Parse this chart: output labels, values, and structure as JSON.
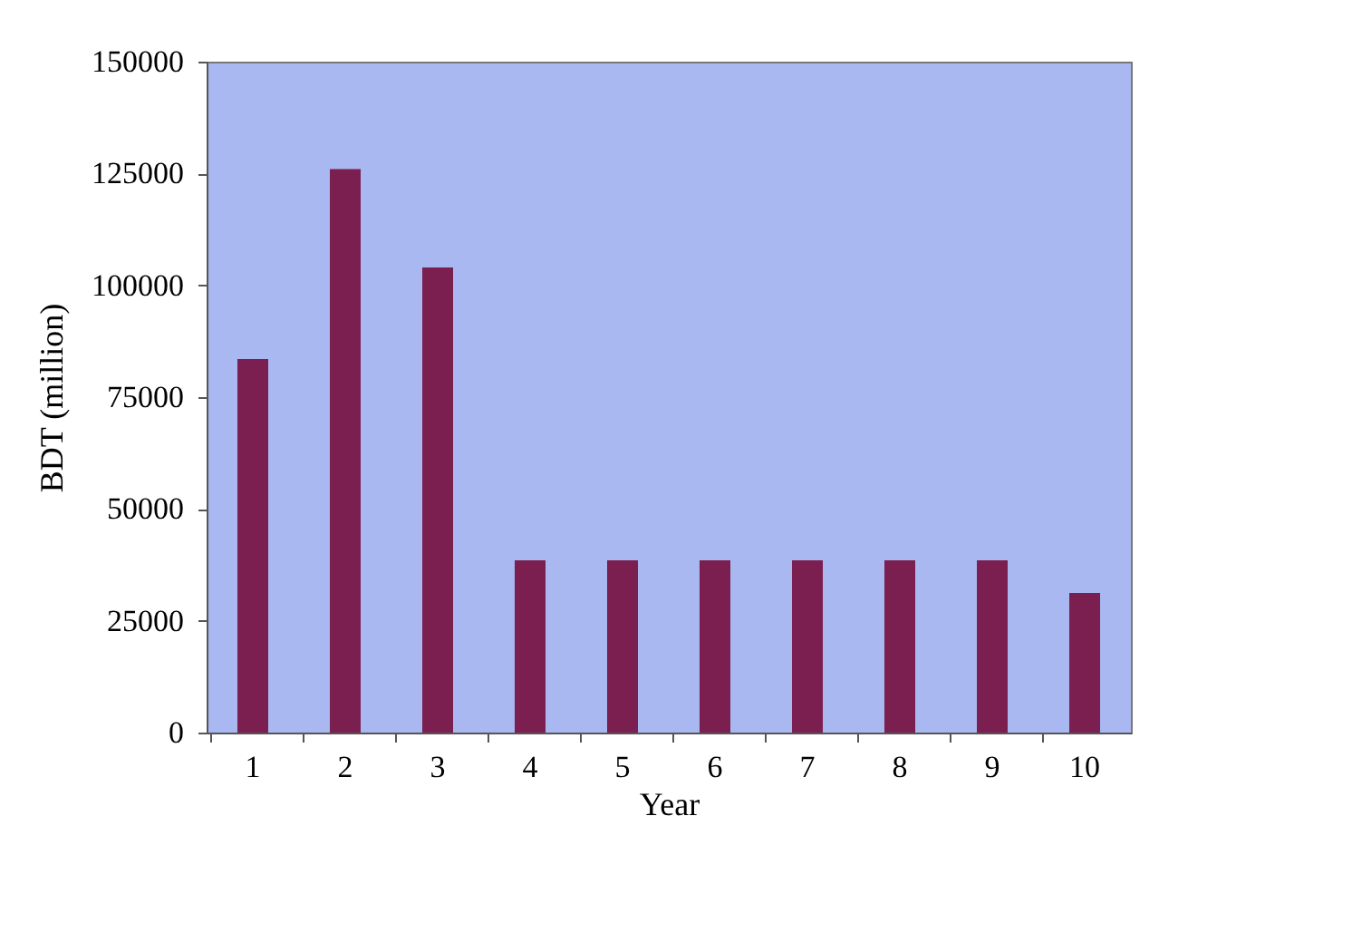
{
  "chart_data": {
    "type": "bar",
    "xlabel": "Year",
    "ylabel": "BDT (million)",
    "categories": [
      "1",
      "2",
      "3",
      "4",
      "5",
      "6",
      "7",
      "8",
      "9",
      "10"
    ],
    "values": [
      83500,
      126000,
      104000,
      38500,
      38500,
      38500,
      38500,
      38500,
      38500,
      31200
    ],
    "color": "#7a1f4f",
    "ylim": [
      0,
      150000
    ],
    "yticks": [
      0,
      25000,
      50000,
      75000,
      100000,
      125000,
      150000
    ],
    "grid": false
  }
}
